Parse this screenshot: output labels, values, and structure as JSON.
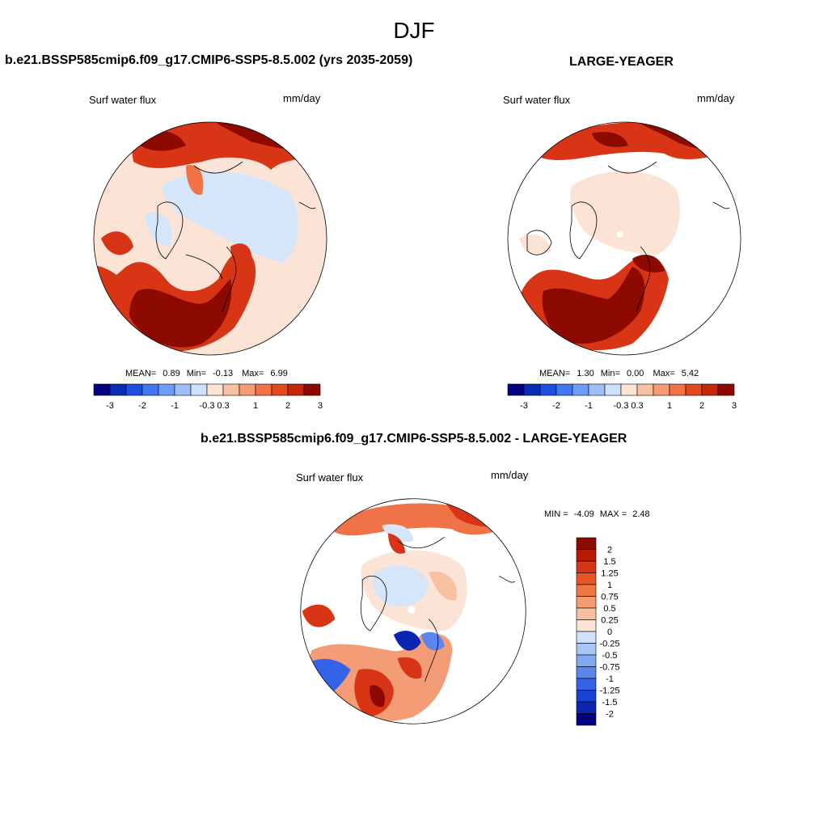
{
  "figure": {
    "title": "DJF"
  },
  "panels": {
    "p1": {
      "title": "b.e21.BSSP585cmip6.f09_g17.CMIP6-SSP5-8.5.002 (yrs 2035-2059)",
      "variable": "Surf water flux",
      "units": "mm/day",
      "stats": {
        "mean_label": "MEAN=",
        "mean": "0.89",
        "min_label": "Min=",
        "min": "-0.13",
        "max_label": "Max=",
        "max": "6.99"
      }
    },
    "p2": {
      "title": "LARGE-YEAGER",
      "variable": "Surf water flux",
      "units": "mm/day",
      "stats": {
        "mean_label": "MEAN=",
        "mean": "1.30",
        "min_label": "Min=",
        "min": "0.00",
        "max_label": "Max=",
        "max": "5.42"
      }
    },
    "p3": {
      "title": "b.e21.BSSP585cmip6.f09_g17.CMIP6-SSP5-8.5.002 - LARGE-YEAGER",
      "variable": "Surf water flux",
      "units": "mm/day",
      "stats": {
        "min_label": "MIN =",
        "min": "-4.09",
        "max_label": "MAX =",
        "max": "2.48"
      }
    }
  },
  "colorbar_horizontal": {
    "colors": [
      "#000080",
      "#0b2ab8",
      "#1f4fe0",
      "#3f78f0",
      "#6f9cf4",
      "#9fbff7",
      "#cfe0fa",
      "#fbe3d5",
      "#f8c1a4",
      "#f49c76",
      "#ef7346",
      "#e2491f",
      "#c4280b",
      "#8d0a00"
    ],
    "tick_labels": [
      "-3",
      "-2",
      "-1",
      "-0.3",
      "0.3",
      "1",
      "2",
      "3"
    ],
    "tick_positions": [
      1,
      3,
      5,
      7,
      8,
      10,
      12,
      14
    ]
  },
  "colorbar_vertical": {
    "colors": [
      "#8d0a00",
      "#b81a06",
      "#d83416",
      "#ea5327",
      "#f27640",
      "#f49b6f",
      "#f8c0a0",
      "#fbe3d5",
      "#cfe0fa",
      "#a8c5f7",
      "#83a8f3",
      "#5c86ee",
      "#3563e8",
      "#1a42d6",
      "#0b26b0",
      "#000080"
    ],
    "labels": [
      "2",
      "1.5",
      "1.25",
      "1",
      "0.75",
      "0.5",
      "0.25",
      "0",
      "-0.25",
      "-0.5",
      "-0.75",
      "-1",
      "-1.25",
      "-1.5",
      "-2"
    ]
  },
  "map_colors": {
    "dark_red": "#8d0a00",
    "red": "#d83416",
    "orange": "#ef7346",
    "light_orange": "#f8c1a4",
    "cream": "#fbe3d5",
    "light_blue": "#d6e6fa",
    "blue": "#5c86ee",
    "dark_blue": "#0b26b0"
  }
}
